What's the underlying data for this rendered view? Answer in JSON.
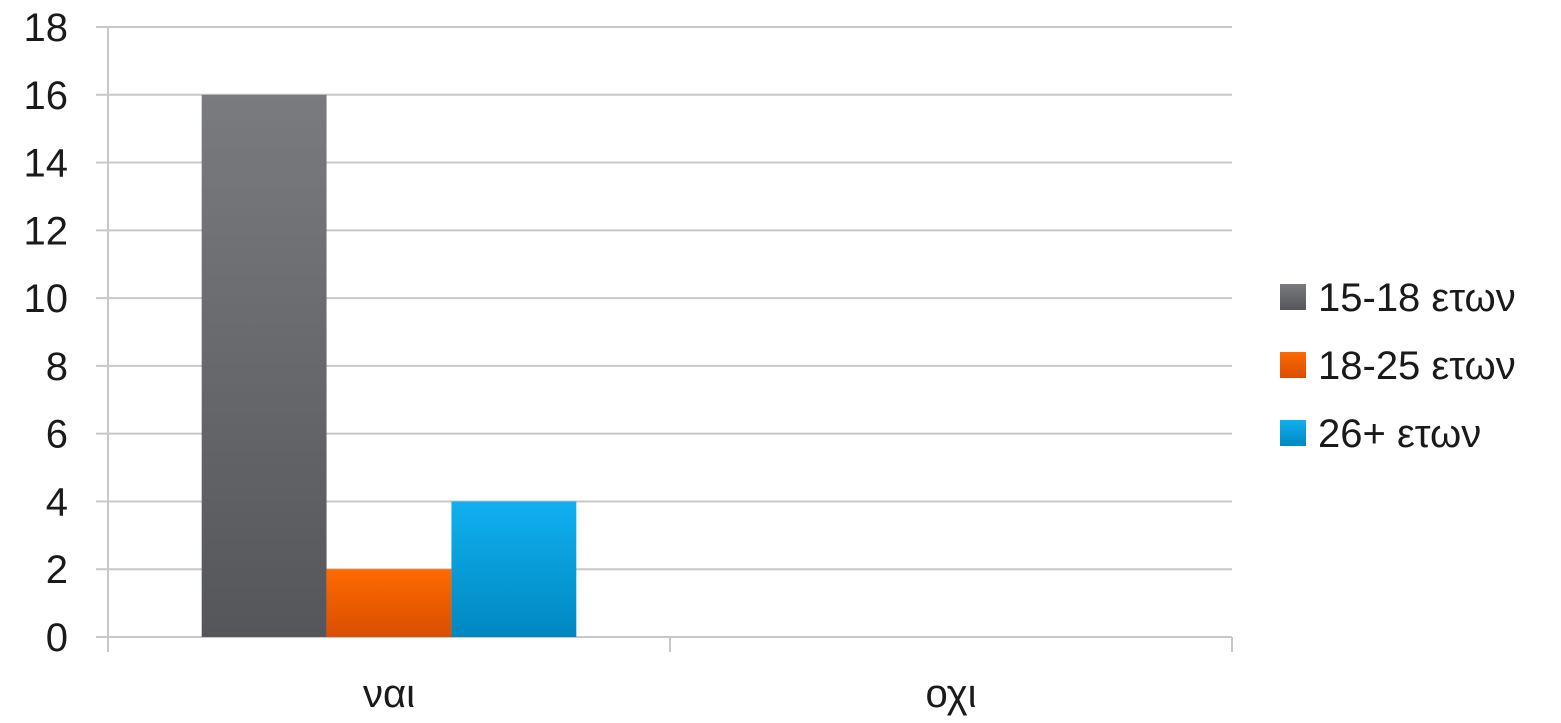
{
  "chart_data": {
    "type": "bar",
    "title": "",
    "xlabel": "",
    "ylabel": "",
    "categories": [
      "ναι",
      "οχι"
    ],
    "series": [
      {
        "name": "15-18 ετων",
        "values": [
          16,
          0
        ],
        "color": "#68696c"
      },
      {
        "name": "18-25 ετων",
        "values": [
          2,
          0
        ],
        "color": "#f05a00"
      },
      {
        "name": "26+ ετων",
        "values": [
          4,
          0
        ],
        "color": "#0aa5e0"
      }
    ],
    "ylim": [
      0,
      18
    ],
    "yticks": [
      0,
      2,
      4,
      6,
      8,
      10,
      12,
      14,
      16,
      18
    ],
    "grid": true,
    "legend": "right"
  }
}
